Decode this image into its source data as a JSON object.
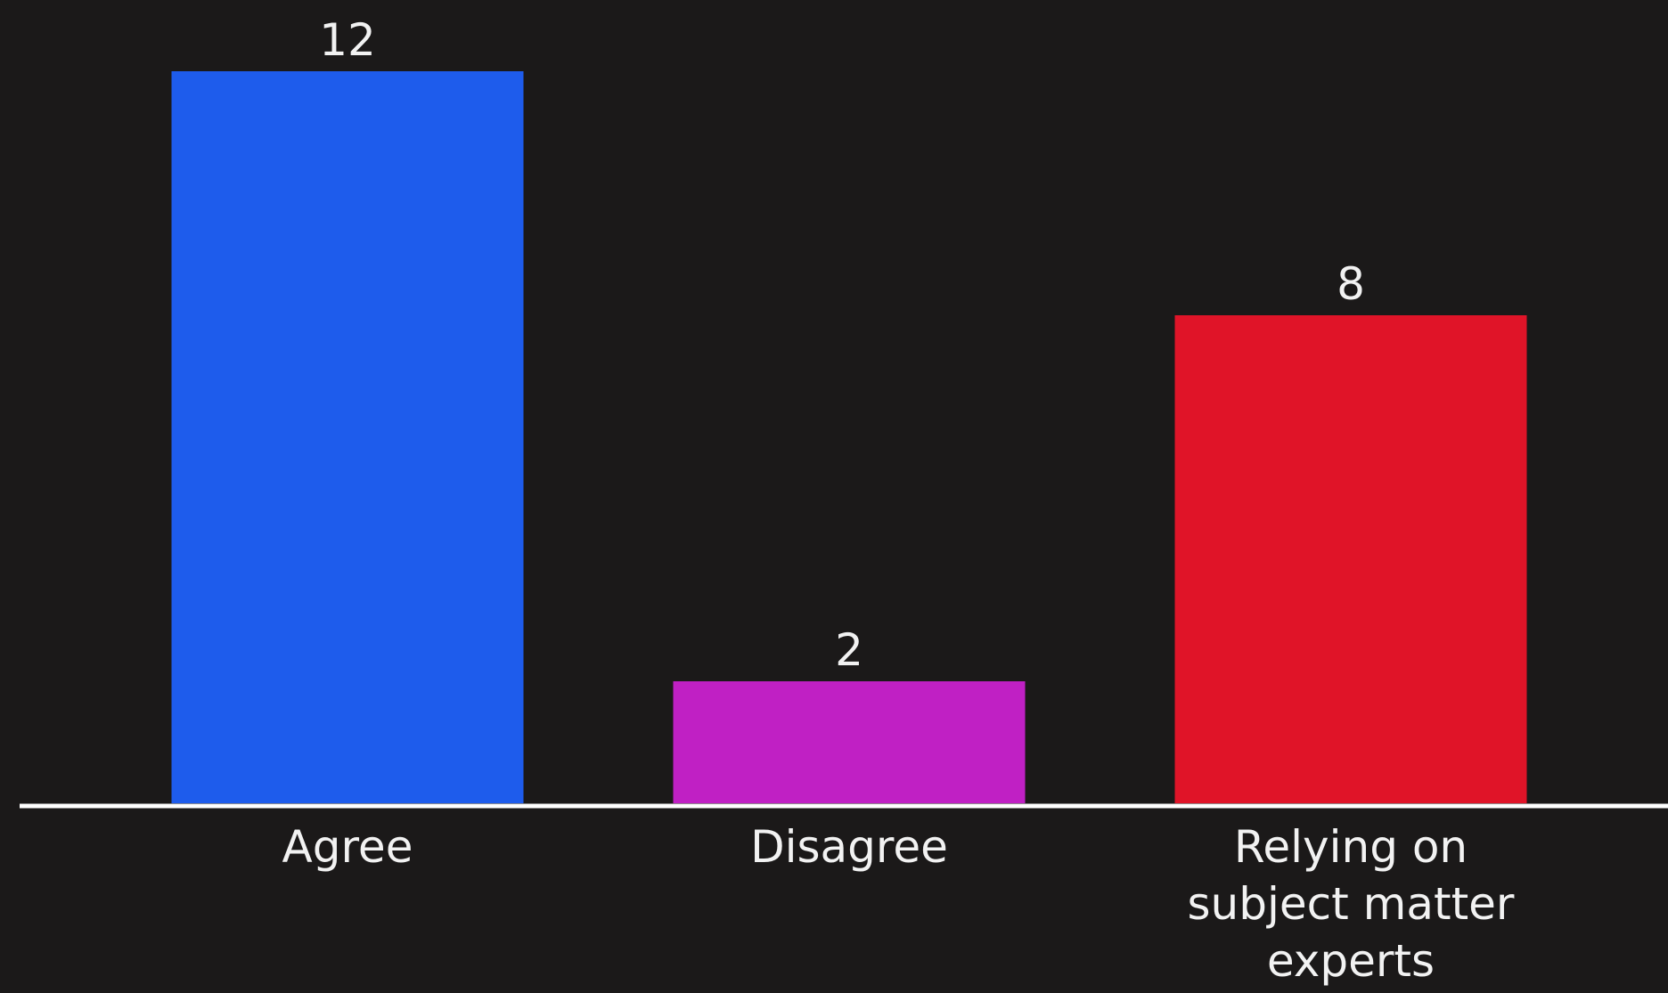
{
  "chart_data": {
    "type": "bar",
    "categories": [
      "Agree",
      "Disagree",
      "Relying on subject matter experts"
    ],
    "category_lines": [
      [
        "Agree"
      ],
      [
        "Disagree"
      ],
      [
        "Relying on",
        "subject matter",
        "experts"
      ]
    ],
    "values": [
      12,
      2,
      8
    ],
    "data_labels": [
      "12",
      "2",
      "8"
    ],
    "colors": [
      "#1e5cec",
      "#c020c4",
      "#e01428"
    ],
    "ylim": [
      0,
      12
    ],
    "grid": false,
    "legend": "none",
    "title": "",
    "xlabel": "",
    "ylabel": ""
  },
  "colors": {
    "background": "#1b1919",
    "axis": "#ffffff",
    "text": "#f2f2f2"
  }
}
